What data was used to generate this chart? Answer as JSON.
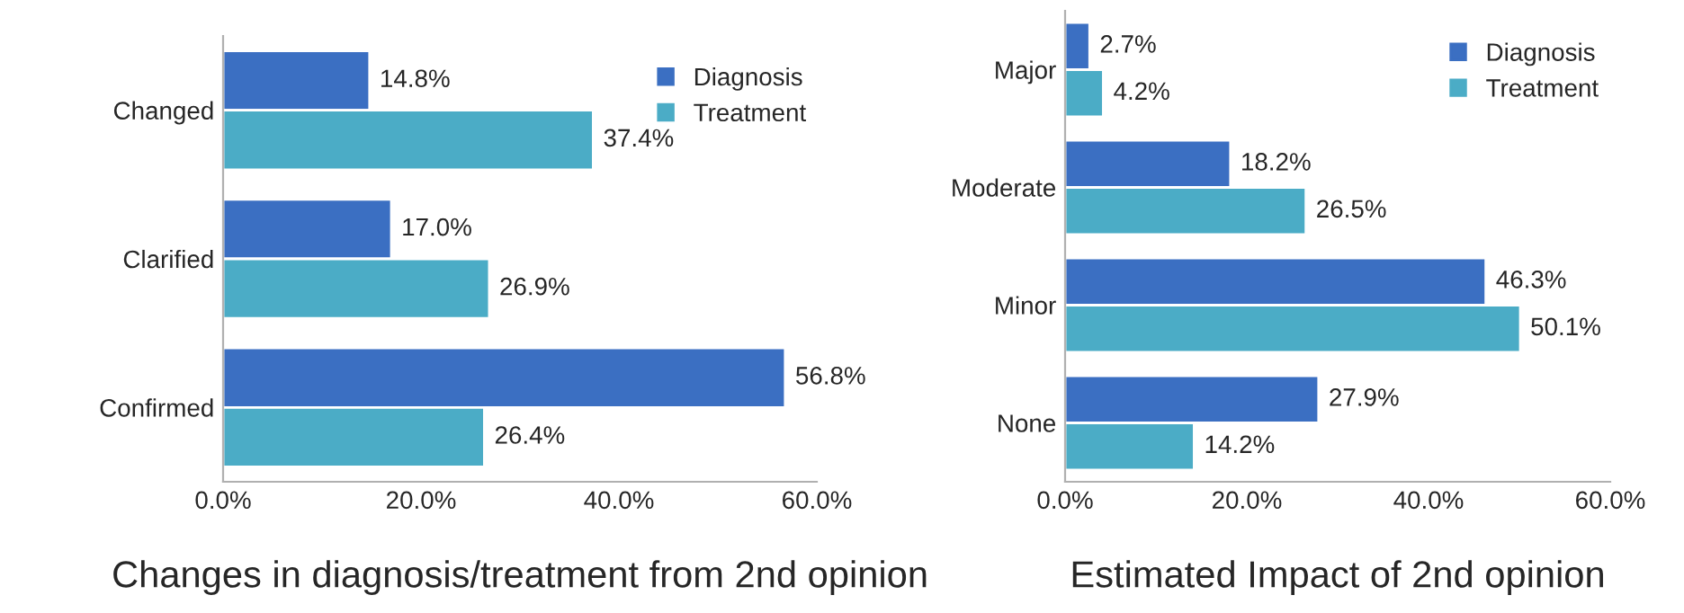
{
  "chart_data": [
    {
      "type": "bar",
      "orientation": "horizontal",
      "title": "Changes in diagnosis/treatment from 2nd opinion",
      "categories": [
        "Changed",
        "Clarified",
        "Confirmed"
      ],
      "series": [
        {
          "name": "Diagnosis",
          "color": "#3b6fc2",
          "values": [
            14.8,
            17.0,
            56.8
          ],
          "value_labels": [
            "14.8%",
            "17.0%",
            "56.8%"
          ]
        },
        {
          "name": "Treatment",
          "color": "#4bacc6",
          "values": [
            37.4,
            26.9,
            26.4
          ],
          "value_labels": [
            "37.4%",
            "26.9%",
            "26.4%"
          ]
        }
      ],
      "xlim": [
        0,
        60
      ],
      "xticks": [
        {
          "value": 0,
          "label": "0.0%"
        },
        {
          "value": 20,
          "label": "20.0%"
        },
        {
          "value": 40,
          "label": "40.0%"
        },
        {
          "value": 60,
          "label": "60.0%"
        }
      ],
      "grid": false,
      "legend": "top right"
    },
    {
      "type": "bar",
      "orientation": "horizontal",
      "title": "Estimated Impact of 2nd opinion",
      "categories": [
        "Major",
        "Moderate",
        "Minor",
        "None"
      ],
      "series": [
        {
          "name": "Diagnosis",
          "color": "#3b6fc2",
          "values": [
            2.7,
            18.2,
            46.3,
            27.9
          ],
          "value_labels": [
            "2.7%",
            "18.2%",
            "46.3%",
            "27.9%"
          ]
        },
        {
          "name": "Treatment",
          "color": "#4bacc6",
          "values": [
            4.2,
            26.5,
            50.1,
            14.2
          ],
          "value_labels": [
            "4.2%",
            "26.5%",
            "50.1%",
            "14.2%"
          ]
        }
      ],
      "xlim": [
        0,
        60
      ],
      "xticks": [
        {
          "value": 0,
          "label": "0.0%"
        },
        {
          "value": 20,
          "label": "20.0%"
        },
        {
          "value": 40,
          "label": "40.0%"
        },
        {
          "value": 60,
          "label": "60.0%"
        }
      ],
      "grid": false,
      "legend": "top right"
    }
  ]
}
